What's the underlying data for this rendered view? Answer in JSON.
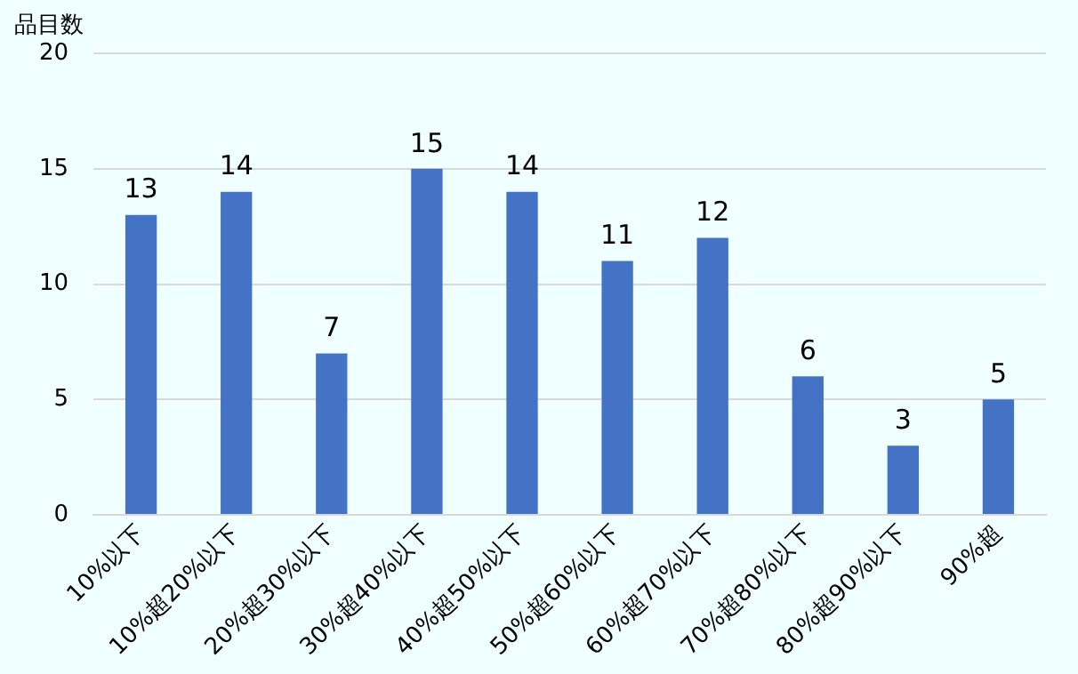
{
  "chart_data": {
    "type": "bar",
    "ylabel": "品目数",
    "categories": [
      "10%以下",
      "10%超20%以下",
      "20%超30%以下",
      "30%超40%以下",
      "40%超50%以下",
      "50%超60%以下",
      "60%超70%以下",
      "70%超80%以下",
      "80%超90%以下",
      "90%超"
    ],
    "values": [
      13,
      14,
      7,
      15,
      14,
      11,
      12,
      6,
      3,
      5
    ],
    "color": "#4472c4",
    "ylim": [
      0,
      20
    ],
    "yticks": [
      0,
      5,
      10,
      15,
      20
    ],
    "grid": "y",
    "data_labels": true,
    "legend": false
  }
}
